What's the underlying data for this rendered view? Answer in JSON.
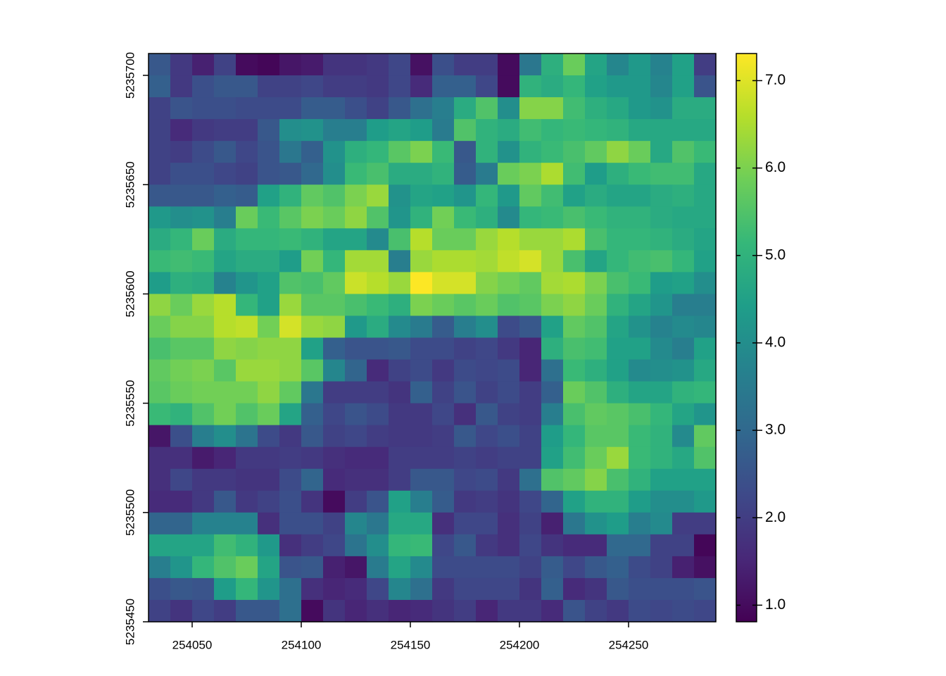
{
  "chart_data": {
    "type": "heatmap",
    "xlim": [
      254030,
      254290
    ],
    "ylim": [
      5235450,
      5235710
    ],
    "xticks": [
      254050,
      254100,
      254150,
      254200,
      254250
    ],
    "yticks": [
      5235450,
      5235500,
      5235550,
      5235600,
      5235650,
      5235700
    ],
    "zlim": [
      0.81,
      7.31
    ],
    "zticks": [
      {
        "value": 1,
        "label": "1.0"
      },
      {
        "value": 2,
        "label": "2.0"
      },
      {
        "value": 3,
        "label": "3.0"
      },
      {
        "value": 4,
        "label": "4.0"
      },
      {
        "value": 5,
        "label": "5.0"
      },
      {
        "value": 6,
        "label": "6.0"
      },
      {
        "value": 7,
        "label": "7.0"
      }
    ],
    "colorscale": [
      "#440154",
      "#482878",
      "#3e4989",
      "#31688e",
      "#26828e",
      "#1f9e89",
      "#35b779",
      "#6ece58",
      "#b5de2b",
      "#fde725"
    ],
    "values": [
      [
        2.6,
        1.9,
        1.4,
        2.1,
        1.0,
        0.9,
        1.2,
        1.3,
        1.8,
        1.8,
        1.9,
        2.2,
        1.1,
        2.4,
        2.0,
        2.0,
        1.0,
        3.4,
        4.9,
        5.8,
        4.6,
        3.8,
        4.3,
        3.7,
        4.5,
        2.0
      ],
      [
        2.8,
        1.9,
        2.4,
        2.6,
        2.6,
        2.1,
        2.1,
        2.2,
        2.0,
        2.0,
        1.9,
        2.2,
        1.6,
        2.8,
        2.8,
        2.2,
        1.0,
        5.0,
        4.8,
        5.1,
        4.5,
        4.3,
        4.3,
        3.8,
        4.5,
        2.5
      ],
      [
        2.1,
        2.5,
        2.4,
        2.4,
        2.3,
        2.3,
        2.3,
        2.7,
        2.7,
        2.4,
        2.1,
        2.6,
        3.2,
        3.6,
        4.8,
        5.5,
        4.0,
        6.1,
        6.1,
        5.3,
        4.9,
        4.7,
        4.3,
        4.1,
        4.8,
        4.8
      ],
      [
        2.1,
        1.6,
        1.9,
        2.0,
        2.0,
        2.6,
        4.0,
        4.1,
        3.6,
        3.6,
        4.4,
        4.6,
        4.4,
        3.5,
        5.5,
        5.0,
        4.8,
        5.3,
        5.1,
        5.2,
        5.1,
        5.0,
        4.7,
        4.7,
        4.7,
        4.7
      ],
      [
        2.1,
        2.0,
        2.3,
        2.6,
        2.2,
        2.5,
        3.4,
        2.8,
        4.1,
        4.9,
        5.1,
        5.6,
        6.0,
        5.2,
        2.6,
        5.0,
        4.1,
        5.0,
        5.2,
        5.4,
        5.7,
        6.2,
        5.8,
        4.7,
        5.5,
        5.2
      ],
      [
        2.1,
        2.4,
        2.4,
        2.2,
        2.1,
        2.5,
        2.6,
        3.0,
        4.0,
        5.2,
        5.4,
        4.8,
        4.8,
        5.0,
        2.7,
        3.5,
        5.8,
        6.0,
        6.5,
        5.3,
        4.4,
        4.9,
        5.2,
        5.3,
        5.3,
        4.7
      ],
      [
        2.6,
        2.6,
        2.6,
        2.8,
        2.7,
        4.5,
        5.0,
        5.7,
        5.5,
        6.0,
        6.3,
        4.1,
        4.6,
        4.5,
        4.2,
        5.1,
        4.3,
        5.7,
        5.3,
        4.5,
        4.8,
        4.6,
        4.6,
        4.8,
        4.9,
        4.7
      ],
      [
        4.3,
        4.0,
        4.1,
        3.6,
        5.8,
        5.2,
        5.6,
        6.0,
        5.8,
        6.2,
        5.5,
        4.2,
        5.0,
        5.9,
        5.2,
        4.9,
        3.9,
        5.1,
        5.2,
        5.4,
        5.2,
        5.0,
        5.0,
        4.8,
        4.7,
        4.7
      ],
      [
        4.8,
        5.1,
        5.8,
        4.8,
        5.1,
        5.1,
        5.2,
        5.0,
        4.6,
        4.6,
        3.9,
        5.4,
        6.6,
        5.8,
        5.8,
        6.3,
        6.6,
        6.3,
        6.3,
        6.5,
        5.4,
        5.1,
        5.1,
        5.0,
        4.8,
        4.6
      ],
      [
        5.2,
        5.3,
        5.2,
        4.6,
        4.8,
        4.8,
        4.4,
        5.9,
        5.1,
        6.4,
        6.4,
        3.6,
        6.3,
        6.5,
        6.5,
        6.4,
        6.7,
        6.9,
        6.3,
        5.4,
        4.6,
        5.1,
        5.3,
        5.4,
        5.1,
        4.5
      ],
      [
        4.4,
        4.9,
        4.8,
        3.7,
        4.2,
        4.5,
        5.5,
        5.4,
        5.7,
        6.8,
        6.6,
        6.3,
        7.3,
        6.9,
        6.9,
        6.1,
        5.9,
        5.7,
        6.4,
        6.5,
        6.0,
        5.4,
        5.2,
        4.4,
        4.5,
        4.0
      ],
      [
        6.2,
        5.8,
        6.3,
        6.6,
        5.1,
        4.5,
        6.3,
        5.6,
        5.6,
        5.4,
        5.2,
        4.9,
        6.0,
        5.8,
        5.6,
        5.8,
        5.5,
        5.6,
        6.0,
        6.2,
        5.8,
        5.0,
        4.6,
        4.2,
        3.6,
        3.6
      ],
      [
        5.8,
        6.1,
        6.1,
        6.6,
        6.7,
        5.9,
        6.9,
        6.3,
        6.2,
        4.3,
        4.8,
        3.9,
        3.5,
        2.7,
        3.6,
        4.0,
        2.3,
        2.6,
        4.5,
        5.7,
        5.5,
        4.6,
        4.1,
        3.7,
        3.9,
        3.8
      ],
      [
        5.4,
        5.6,
        5.6,
        6.2,
        6.1,
        6.2,
        6.2,
        4.5,
        2.8,
        2.5,
        2.5,
        2.6,
        2.3,
        2.3,
        2.1,
        2.2,
        1.9,
        1.5,
        4.9,
        5.4,
        5.3,
        4.5,
        4.5,
        3.9,
        3.6,
        4.5
      ],
      [
        5.7,
        5.9,
        6.0,
        5.6,
        6.3,
        6.3,
        6.2,
        5.6,
        3.8,
        2.9,
        1.6,
        2.1,
        2.3,
        1.9,
        2.3,
        2.2,
        2.3,
        1.5,
        3.2,
        5.2,
        4.9,
        4.5,
        3.9,
        4.0,
        4.1,
        4.7
      ],
      [
        5.6,
        5.8,
        5.9,
        5.9,
        5.9,
        6.2,
        5.7,
        3.4,
        2.0,
        2.0,
        2.0,
        1.8,
        2.8,
        2.1,
        2.5,
        2.1,
        2.3,
        2.0,
        2.8,
        5.8,
        5.5,
        4.9,
        4.6,
        4.6,
        5.0,
        5.1
      ],
      [
        5.2,
        5.0,
        5.5,
        5.9,
        5.5,
        5.8,
        4.6,
        2.8,
        2.2,
        2.5,
        2.3,
        1.9,
        1.9,
        2.2,
        1.7,
        2.6,
        2.1,
        2.0,
        3.6,
        5.4,
        5.7,
        5.6,
        5.4,
        5.1,
        4.6,
        4.2
      ],
      [
        1.2,
        2.4,
        3.6,
        4.0,
        3.3,
        2.3,
        1.9,
        2.6,
        2.1,
        2.2,
        2.0,
        1.9,
        1.9,
        2.0,
        2.6,
        2.2,
        2.4,
        2.1,
        4.4,
        5.1,
        5.6,
        5.6,
        5.2,
        5.0,
        3.9,
        5.7
      ],
      [
        1.7,
        1.7,
        1.3,
        1.5,
        1.9,
        1.9,
        2.0,
        1.9,
        1.7,
        1.6,
        1.6,
        2.0,
        2.0,
        2.0,
        2.1,
        2.0,
        2.1,
        2.1,
        4.5,
        5.3,
        5.8,
        6.3,
        5.2,
        5.0,
        4.7,
        5.5
      ],
      [
        1.7,
        2.2,
        1.9,
        1.9,
        1.8,
        1.8,
        2.3,
        2.9,
        1.6,
        1.7,
        1.7,
        2.0,
        2.6,
        2.6,
        2.2,
        2.3,
        1.9,
        3.2,
        5.5,
        5.7,
        6.1,
        5.4,
        5.0,
        4.5,
        4.5,
        4.5
      ],
      [
        1.6,
        1.6,
        1.9,
        2.6,
        1.9,
        2.1,
        2.4,
        1.8,
        1.0,
        2.0,
        2.5,
        4.5,
        3.6,
        2.7,
        1.9,
        2.0,
        1.8,
        2.2,
        2.9,
        4.5,
        5.0,
        5.0,
        4.4,
        4.0,
        4.0,
        4.3
      ],
      [
        2.9,
        2.9,
        3.7,
        3.7,
        3.7,
        1.7,
        2.4,
        2.4,
        2.1,
        3.8,
        3.4,
        4.7,
        4.7,
        1.7,
        2.2,
        2.2,
        1.7,
        2.1,
        1.4,
        3.4,
        4.1,
        4.4,
        3.6,
        3.9,
        2.0,
        2.0
      ],
      [
        4.6,
        4.6,
        4.6,
        5.3,
        5.0,
        4.3,
        1.7,
        2.0,
        2.2,
        3.3,
        4.0,
        5.1,
        5.2,
        2.2,
        2.6,
        1.9,
        1.7,
        2.2,
        1.8,
        1.6,
        1.6,
        3.0,
        3.0,
        2.1,
        2.1,
        0.9
      ],
      [
        3.6,
        4.2,
        5.1,
        5.5,
        5.8,
        4.6,
        2.5,
        2.6,
        1.4,
        1.2,
        3.5,
        4.6,
        3.9,
        2.3,
        2.3,
        2.3,
        2.3,
        2.1,
        2.7,
        2.2,
        2.6,
        2.8,
        2.3,
        2.1,
        1.4,
        1.1
      ],
      [
        2.4,
        2.6,
        2.5,
        4.4,
        5.1,
        4.2,
        3.2,
        1.7,
        1.5,
        1.6,
        2.2,
        3.8,
        3.2,
        1.9,
        2.2,
        2.2,
        2.2,
        1.8,
        2.8,
        1.6,
        1.8,
        2.6,
        2.4,
        2.4,
        2.4,
        2.5
      ],
      [
        2.1,
        1.8,
        2.2,
        2.0,
        2.6,
        2.6,
        3.2,
        1.0,
        1.8,
        1.5,
        1.7,
        1.5,
        1.6,
        1.8,
        2.0,
        1.5,
        1.9,
        1.9,
        1.6,
        2.5,
        2.1,
        1.9,
        2.3,
        2.2,
        2.3,
        2.2
      ]
    ]
  }
}
